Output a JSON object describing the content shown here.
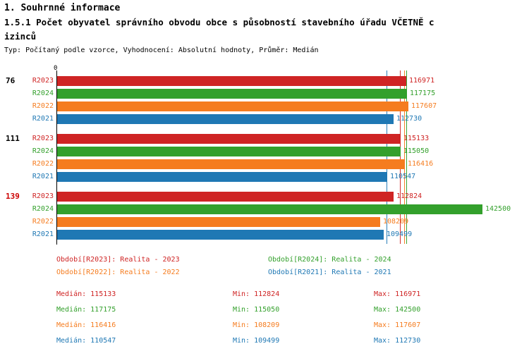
{
  "header": {
    "title": "1. Souhrnné informace",
    "subtitle_line1": "1.5.1 Počet obyvatel správního obvodu obce s působností stavebního úřadu VČETNĚ c",
    "subtitle_line2": "izinců",
    "meta": "Typ: Počítaný podle vzorce, Vyhodnocení: Absolutní hodnoty, Průměr: Medián"
  },
  "chart_data": {
    "type": "bar",
    "orientation": "horizontal",
    "title": "1.5.1 Počet obyvatel správního obvodu obce s působností stavebního úřadu VČETNĚ cizinců",
    "axis_origin_label": "0",
    "xlim": [
      0,
      142500
    ],
    "grid": false,
    "series_colors": {
      "R2023": "#cf2424",
      "R2024": "#33a02c",
      "R2022": "#f57c1f",
      "R2021": "#1f78b4"
    },
    "groups": [
      {
        "label": "76",
        "label_color": "#000000",
        "bars": [
          {
            "series": "R2023",
            "value": 116971
          },
          {
            "series": "R2024",
            "value": 117175
          },
          {
            "series": "R2022",
            "value": 117607
          },
          {
            "series": "R2021",
            "value": 112730
          }
        ]
      },
      {
        "label": "111",
        "label_color": "#000000",
        "bars": [
          {
            "series": "R2023",
            "value": 115133
          },
          {
            "series": "R2024",
            "value": 115050
          },
          {
            "series": "R2022",
            "value": 116416
          },
          {
            "series": "R2021",
            "value": 110547
          }
        ]
      },
      {
        "label": "139",
        "label_color": "#cc0000",
        "bars": [
          {
            "series": "R2023",
            "value": 112824
          },
          {
            "series": "R2024",
            "value": 142500
          },
          {
            "series": "R2022",
            "value": 108209
          },
          {
            "series": "R2021",
            "value": 109499
          }
        ]
      }
    ],
    "medians": {
      "R2023": 115133,
      "R2024": 117175,
      "R2022": 116416,
      "R2021": 110547
    }
  },
  "legend": {
    "items": [
      {
        "label": "Období[R2023]: Realita - 2023",
        "color": "#cf2424",
        "col": 0,
        "row": 0
      },
      {
        "label": "Období[R2024]: Realita - 2024",
        "color": "#33a02c",
        "col": 1,
        "row": 0
      },
      {
        "label": "Období[R2022]: Realita - 2022",
        "color": "#f57c1f",
        "col": 0,
        "row": 1
      },
      {
        "label": "Období[R2021]: Realita - 2021",
        "color": "#1f78b4",
        "col": 1,
        "row": 1
      }
    ]
  },
  "stats": {
    "rows": [
      {
        "color": "#cf2424",
        "median": "Medián: 115133",
        "min": "Min: 112824",
        "max": "Max: 116971"
      },
      {
        "color": "#33a02c",
        "median": "Medián: 117175",
        "min": "Min: 115050",
        "max": "Max: 142500"
      },
      {
        "color": "#f57c1f",
        "median": "Medián: 116416",
        "min": "Min: 108209",
        "max": "Max: 117607"
      },
      {
        "color": "#1f78b4",
        "median": "Medián: 110547",
        "min": "Min: 109499",
        "max": "Max: 112730"
      }
    ]
  }
}
